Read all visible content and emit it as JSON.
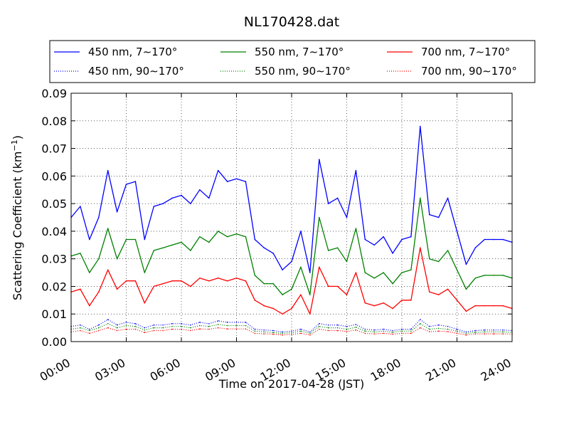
{
  "chart_data": {
    "type": "line",
    "title": "NL170428.dat",
    "xlabel": "Time on 2017-04-28 (JST)",
    "ylabel_main": "Scattering Coefficient (km",
    "ylabel_sup": "−1",
    "ylabel_close": ")",
    "x_ticks": [
      "00:00",
      "03:00",
      "06:00",
      "09:00",
      "12:00",
      "15:00",
      "18:00",
      "21:00",
      "24:00"
    ],
    "y_ticks": [
      "0.00",
      "0.01",
      "0.02",
      "0.03",
      "0.04",
      "0.05",
      "0.06",
      "0.07",
      "0.08",
      "0.09"
    ],
    "xlim_hours": [
      0,
      24
    ],
    "ylim": [
      0,
      0.09
    ],
    "grid": true,
    "legend_position": "top-center, above plot",
    "legend_columns": 3,
    "x_hours": [
      0,
      0.5,
      1,
      1.5,
      2,
      2.5,
      3,
      3.5,
      4,
      4.5,
      5,
      5.5,
      6,
      6.5,
      7,
      7.5,
      8,
      8.5,
      9,
      9.5,
      10,
      10.5,
      11,
      11.5,
      12,
      12.5,
      13,
      13.5,
      14,
      14.5,
      15,
      15.5,
      16,
      16.5,
      17,
      17.5,
      18,
      18.5,
      19,
      19.5,
      20,
      20.5,
      21,
      21.5,
      22,
      22.5,
      23,
      23.5,
      24
    ],
    "series": [
      {
        "name": "450 nm, 7∼170°",
        "color": "#0000ff",
        "style": "solid",
        "values": [
          0.045,
          0.049,
          0.037,
          0.045,
          0.062,
          0.047,
          0.057,
          0.058,
          0.037,
          0.049,
          0.05,
          0.052,
          0.053,
          0.05,
          0.055,
          0.052,
          0.062,
          0.058,
          0.059,
          0.058,
          0.037,
          0.034,
          0.032,
          0.026,
          0.029,
          0.04,
          0.025,
          0.066,
          0.05,
          0.052,
          0.045,
          0.062,
          0.037,
          0.035,
          0.038,
          0.032,
          0.037,
          0.038,
          0.078,
          0.046,
          0.045,
          0.052,
          0.04,
          0.028,
          0.034,
          0.037,
          0.037,
          0.037,
          0.036
        ]
      },
      {
        "name": "450 nm, 90∼170°",
        "color": "#0000ff",
        "style": "dotted",
        "values": [
          0.0055,
          0.006,
          0.0045,
          0.006,
          0.008,
          0.006,
          0.007,
          0.0065,
          0.005,
          0.006,
          0.006,
          0.0065,
          0.0065,
          0.006,
          0.007,
          0.0065,
          0.0075,
          0.007,
          0.007,
          0.007,
          0.0045,
          0.0042,
          0.004,
          0.0035,
          0.0038,
          0.0045,
          0.0035,
          0.0065,
          0.006,
          0.006,
          0.0055,
          0.0062,
          0.0045,
          0.0042,
          0.0045,
          0.004,
          0.0045,
          0.0045,
          0.008,
          0.0055,
          0.006,
          0.0055,
          0.0045,
          0.0035,
          0.004,
          0.0042,
          0.0042,
          0.0042,
          0.004
        ]
      },
      {
        "name": "550 nm, 7∼170°",
        "color": "#008000",
        "style": "solid",
        "values": [
          0.031,
          0.032,
          0.025,
          0.03,
          0.041,
          0.03,
          0.037,
          0.037,
          0.025,
          0.033,
          0.034,
          0.035,
          0.036,
          0.033,
          0.038,
          0.036,
          0.04,
          0.038,
          0.039,
          0.038,
          0.024,
          0.021,
          0.021,
          0.017,
          0.019,
          0.027,
          0.017,
          0.045,
          0.033,
          0.034,
          0.029,
          0.041,
          0.025,
          0.023,
          0.025,
          0.021,
          0.025,
          0.026,
          0.052,
          0.03,
          0.029,
          0.033,
          0.026,
          0.019,
          0.023,
          0.024,
          0.024,
          0.024,
          0.023
        ]
      },
      {
        "name": "550 nm, 90∼170°",
        "color": "#008000",
        "style": "dotted",
        "values": [
          0.0045,
          0.005,
          0.004,
          0.005,
          0.0065,
          0.005,
          0.0058,
          0.0055,
          0.0042,
          0.005,
          0.005,
          0.0055,
          0.0055,
          0.005,
          0.0058,
          0.0055,
          0.0062,
          0.0058,
          0.0058,
          0.0058,
          0.0038,
          0.0035,
          0.0033,
          0.003,
          0.0032,
          0.0038,
          0.003,
          0.0055,
          0.005,
          0.005,
          0.0045,
          0.0052,
          0.0038,
          0.0035,
          0.0038,
          0.0034,
          0.0038,
          0.0038,
          0.0065,
          0.0045,
          0.0048,
          0.0045,
          0.0038,
          0.003,
          0.0034,
          0.0035,
          0.0035,
          0.0035,
          0.0034
        ]
      },
      {
        "name": "700 nm, 7∼170°",
        "color": "#ff0000",
        "style": "solid",
        "values": [
          0.018,
          0.019,
          0.013,
          0.018,
          0.026,
          0.019,
          0.022,
          0.022,
          0.014,
          0.02,
          0.021,
          0.022,
          0.022,
          0.02,
          0.023,
          0.022,
          0.023,
          0.022,
          0.023,
          0.022,
          0.015,
          0.013,
          0.012,
          0.01,
          0.012,
          0.017,
          0.01,
          0.027,
          0.02,
          0.02,
          0.017,
          0.025,
          0.014,
          0.013,
          0.014,
          0.012,
          0.015,
          0.015,
          0.034,
          0.018,
          0.017,
          0.019,
          0.015,
          0.011,
          0.013,
          0.013,
          0.013,
          0.013,
          0.012
        ]
      },
      {
        "name": "700 nm, 90∼170°",
        "color": "#ff0000",
        "style": "dotted",
        "values": [
          0.0035,
          0.004,
          0.003,
          0.004,
          0.005,
          0.004,
          0.0045,
          0.0045,
          0.0033,
          0.004,
          0.004,
          0.0045,
          0.0045,
          0.004,
          0.0046,
          0.0045,
          0.005,
          0.0046,
          0.0046,
          0.0046,
          0.003,
          0.0028,
          0.0027,
          0.0024,
          0.0026,
          0.003,
          0.0024,
          0.0045,
          0.004,
          0.004,
          0.0037,
          0.0042,
          0.003,
          0.0028,
          0.003,
          0.0027,
          0.003,
          0.003,
          0.005,
          0.0036,
          0.0038,
          0.0036,
          0.003,
          0.0024,
          0.0028,
          0.0028,
          0.0028,
          0.0028,
          0.0027
        ]
      }
    ]
  }
}
